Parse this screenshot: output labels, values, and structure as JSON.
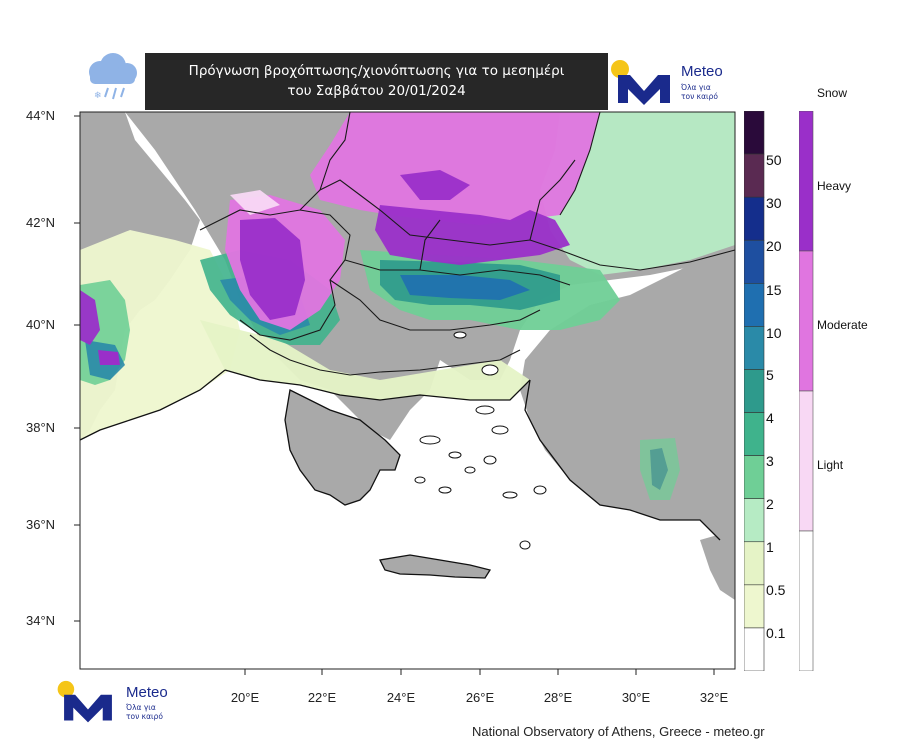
{
  "title": {
    "line1": "Πρόγνωση βροχόπτωσης/χιονόπτωσης για το μεσημέρι",
    "line2": "του Σαββάτου 20/01/2024"
  },
  "logo": {
    "brand": "Meteo",
    "tagline_line1": "Όλα για",
    "tagline_line2": "τον καιρό",
    "colors": {
      "dot": "#f5c518",
      "mark": "#1a2a8c"
    }
  },
  "map": {
    "lat_labels": [
      "44°N",
      "42°N",
      "40°N",
      "38°N",
      "36°N",
      "34°N"
    ],
    "lon_labels": [
      "20°E",
      "22°E",
      "24°E",
      "26°E",
      "28°E",
      "30°E",
      "32°E"
    ],
    "colors": {
      "sea": "#ffffff",
      "land": "#a9a9a9",
      "borders": "#1a1a1a"
    }
  },
  "precip_scale": {
    "labels": [
      "50",
      "30",
      "20",
      "15",
      "10",
      "5",
      "4",
      "3",
      "2",
      "1",
      "0.5",
      "0.1"
    ],
    "colors": [
      "#2a0a3a",
      "#5a2a52",
      "#142e8c",
      "#1e4fa0",
      "#1f6fb0",
      "#2a8aa8",
      "#2e9a8c",
      "#3fb38c",
      "#6fcf96",
      "#b6ebc4",
      "#e5f3c6",
      "#eef7cf",
      "#ffffff"
    ]
  },
  "snow_scale": {
    "title": "Snow",
    "labels": [
      "Heavy",
      "Moderate",
      "Light"
    ],
    "colors": [
      "#9a2fc9",
      "#e075e0",
      "#f8d8f4",
      "#ffffff"
    ]
  },
  "footer": {
    "credit": "National Observatory of Athens, Greece - meteo.gr"
  }
}
